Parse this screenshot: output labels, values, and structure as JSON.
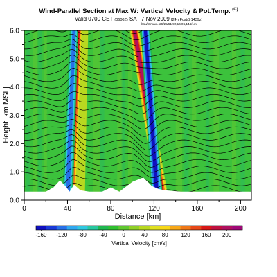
{
  "header": {
    "title": "Wind-Parallel Section at Max W: Vertical Velocity & Pot.Temp.",
    "title_mark": "(C)",
    "valid_prefix": "Valid 0700 CET",
    "valid_utc": "(0600Z)",
    "valid_date": "SAT 7 Nov 2009",
    "valid_suffix": "[24hrFcst@1439z]",
    "subline": "bsu/Wmax=-26/25/51,92,16,06,144/1m"
  },
  "colors": {
    "background_green": "#3cc23c",
    "terrain": "#ffffff",
    "contour": "#000000"
  },
  "chart_data": {
    "type": "heatmap",
    "xlabel": "Distance [km]",
    "ylabel": "Height [km MSL]",
    "xlim": [
      0,
      210
    ],
    "ylim": [
      0,
      6
    ],
    "x_ticks": [
      0,
      40,
      80,
      120,
      160,
      200
    ],
    "y_ticks": [
      0.0,
      1.0,
      2.0,
      3.0,
      4.0,
      5.0,
      6.0
    ],
    "colorbar": {
      "label": "Vertical Velocity [cm/s]",
      "ticks": [
        -160,
        -120,
        -80,
        -40,
        0,
        40,
        80,
        120,
        160,
        200
      ],
      "range": [
        -170,
        230
      ],
      "colors": [
        "#1010c0",
        "#1a3ad8",
        "#2870e8",
        "#30a8f0",
        "#30c8e0",
        "#28c8a0",
        "#20b850",
        "#30c030",
        "#60c830",
        "#90d028",
        "#b8d820",
        "#e0e020",
        "#f8d818",
        "#f8a818",
        "#f07818",
        "#e84818",
        "#d81818",
        "#c01040",
        "#b01060",
        "#a00878"
      ]
    },
    "terrain_km": [
      [
        0,
        0.3
      ],
      [
        20,
        0.3
      ],
      [
        27,
        0.45
      ],
      [
        33,
        0.7
      ],
      [
        38,
        0.5
      ],
      [
        42,
        0.3
      ],
      [
        46,
        0.55
      ],
      [
        52,
        0.35
      ],
      [
        60,
        0.3
      ],
      [
        72,
        0.3
      ],
      [
        80,
        0.45
      ],
      [
        88,
        0.3
      ],
      [
        100,
        0.65
      ],
      [
        110,
        0.8
      ],
      [
        118,
        0.5
      ],
      [
        124,
        0.4
      ],
      [
        130,
        0.35
      ],
      [
        145,
        0.3
      ],
      [
        210,
        0.3
      ]
    ],
    "updraft_plumes": [
      {
        "x_bottom": 43,
        "x_top": 50,
        "peak_cm_s": 160
      },
      {
        "x_bottom": 128,
        "x_top": 102,
        "peak_cm_s": 200
      },
      {
        "x_bottom": 52,
        "x_top": 56,
        "peak_cm_s": 60
      }
    ],
    "downdraft_plumes": [
      {
        "x_bottom": 40,
        "x_top": 46,
        "peak_cm_s": -120
      },
      {
        "x_bottom": 123,
        "x_top": 112,
        "peak_cm_s": -160
      }
    ]
  }
}
